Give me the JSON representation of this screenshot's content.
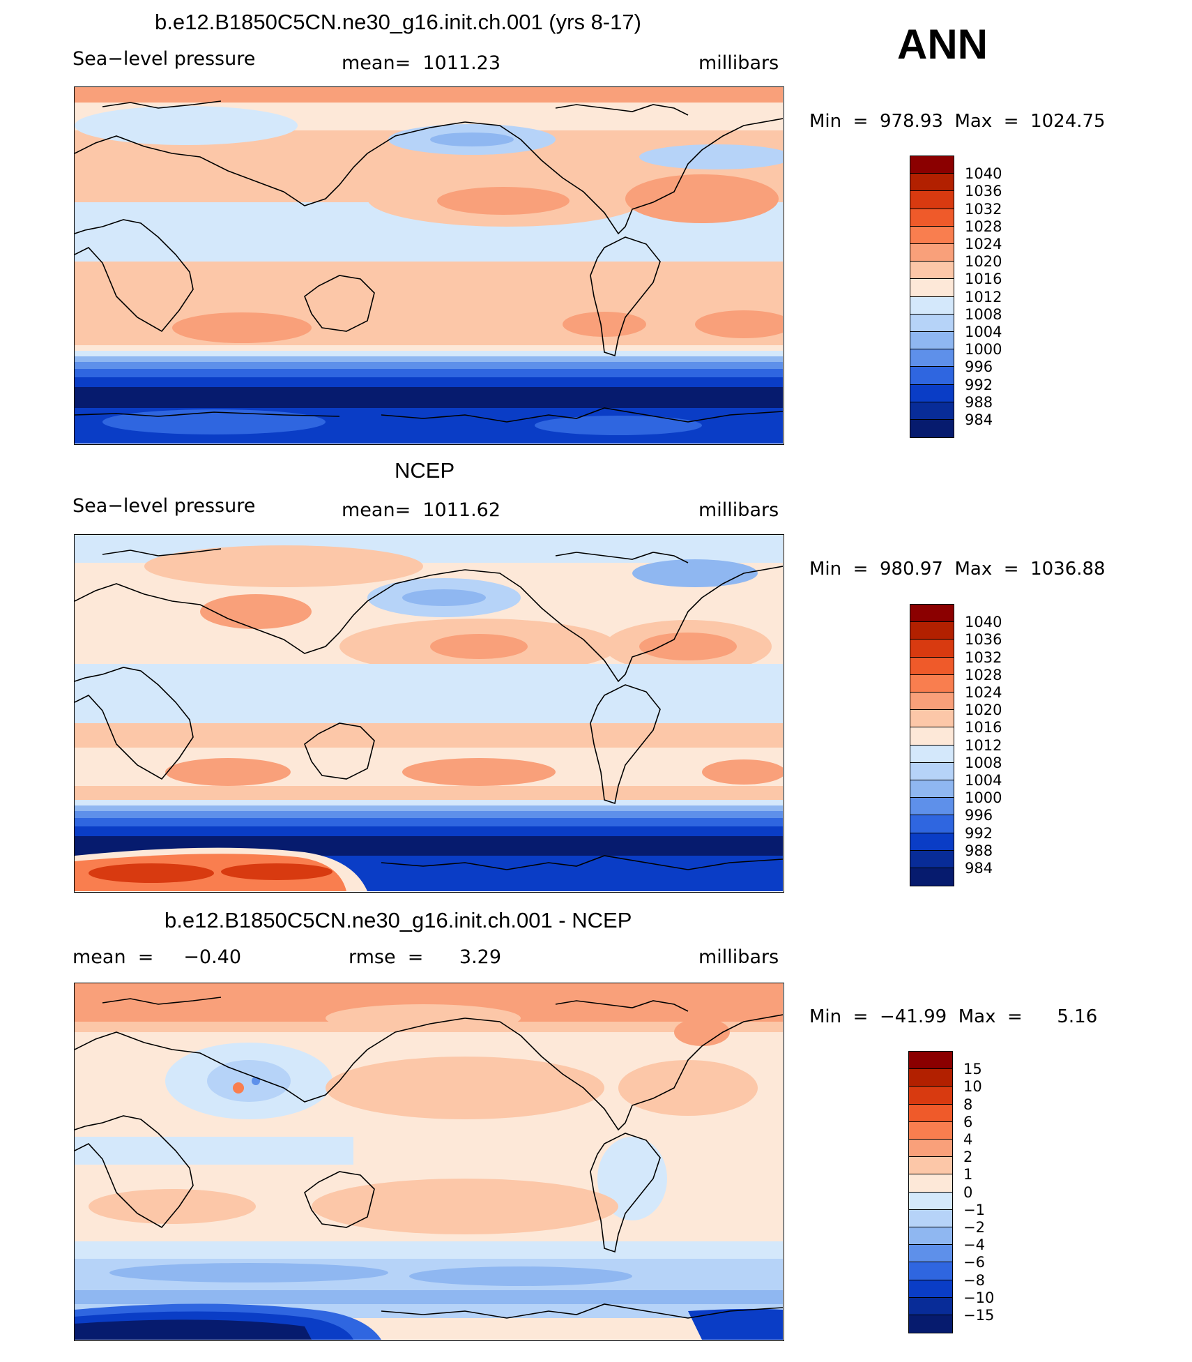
{
  "season": "ANN",
  "chart_data": [
    {
      "type": "heatmap",
      "title": "b.e12.B1850C5CN.ne30_g16.init.ch.001 (yrs 8-17)",
      "subtitle_left": "Sea−level pressure",
      "subtitle_mid": "mean=  1011.23",
      "units": "millibars",
      "stats": "Min  =  978.93  Max  =  1024.75",
      "colorbar_levels": [
        "1040",
        "1036",
        "1032",
        "1028",
        "1024",
        "1020",
        "1016",
        "1012",
        "1008",
        "1004",
        "1000",
        "996",
        "992",
        "988",
        "984"
      ],
      "colors": [
        "#8b0000",
        "#b22000",
        "#d83a10",
        "#ef5a2a",
        "#f97e4f",
        "#f9a07a",
        "#fcc7a8",
        "#fde8d8",
        "#d4e8fb",
        "#b6d3f8",
        "#8fb7f1",
        "#5e90ea",
        "#2f66e0",
        "#0a3dc6",
        "#082c98",
        "#061b6e"
      ]
    },
    {
      "type": "heatmap",
      "title": "NCEP",
      "subtitle_left": "Sea−level pressure",
      "subtitle_mid": "mean=  1011.62",
      "units": "millibars",
      "stats": "Min  =  980.97  Max  =  1036.88",
      "colorbar_levels": [
        "1040",
        "1036",
        "1032",
        "1028",
        "1024",
        "1020",
        "1016",
        "1012",
        "1008",
        "1004",
        "1000",
        "996",
        "992",
        "988",
        "984"
      ],
      "colors": [
        "#8b0000",
        "#b22000",
        "#d83a10",
        "#ef5a2a",
        "#f97e4f",
        "#f9a07a",
        "#fcc7a8",
        "#fde8d8",
        "#d4e8fb",
        "#b6d3f8",
        "#8fb7f1",
        "#5e90ea",
        "#2f66e0",
        "#0a3dc6",
        "#082c98",
        "#061b6e"
      ]
    },
    {
      "type": "heatmap",
      "title": "b.e12.B1850C5CN.ne30_g16.init.ch.001 - NCEP",
      "subtitle_left": "mean  =     −0.40",
      "subtitle_mid": "rmse  =      3.29",
      "units": "millibars",
      "stats": "Min  =  −41.99  Max  =      5.16",
      "colorbar_levels": [
        "15",
        "10",
        "8",
        "6",
        "4",
        "2",
        "1",
        "0",
        "−1",
        "−2",
        "−4",
        "−6",
        "−8",
        "−10",
        "−15"
      ],
      "colors": [
        "#8b0000",
        "#b22000",
        "#d83a10",
        "#ef5a2a",
        "#f97e4f",
        "#f9a07a",
        "#fcc7a8",
        "#fde8d8",
        "#d4e8fb",
        "#b6d3f8",
        "#8fb7f1",
        "#5e90ea",
        "#2f66e0",
        "#0a3dc6",
        "#082c98",
        "#061b6e"
      ]
    }
  ]
}
